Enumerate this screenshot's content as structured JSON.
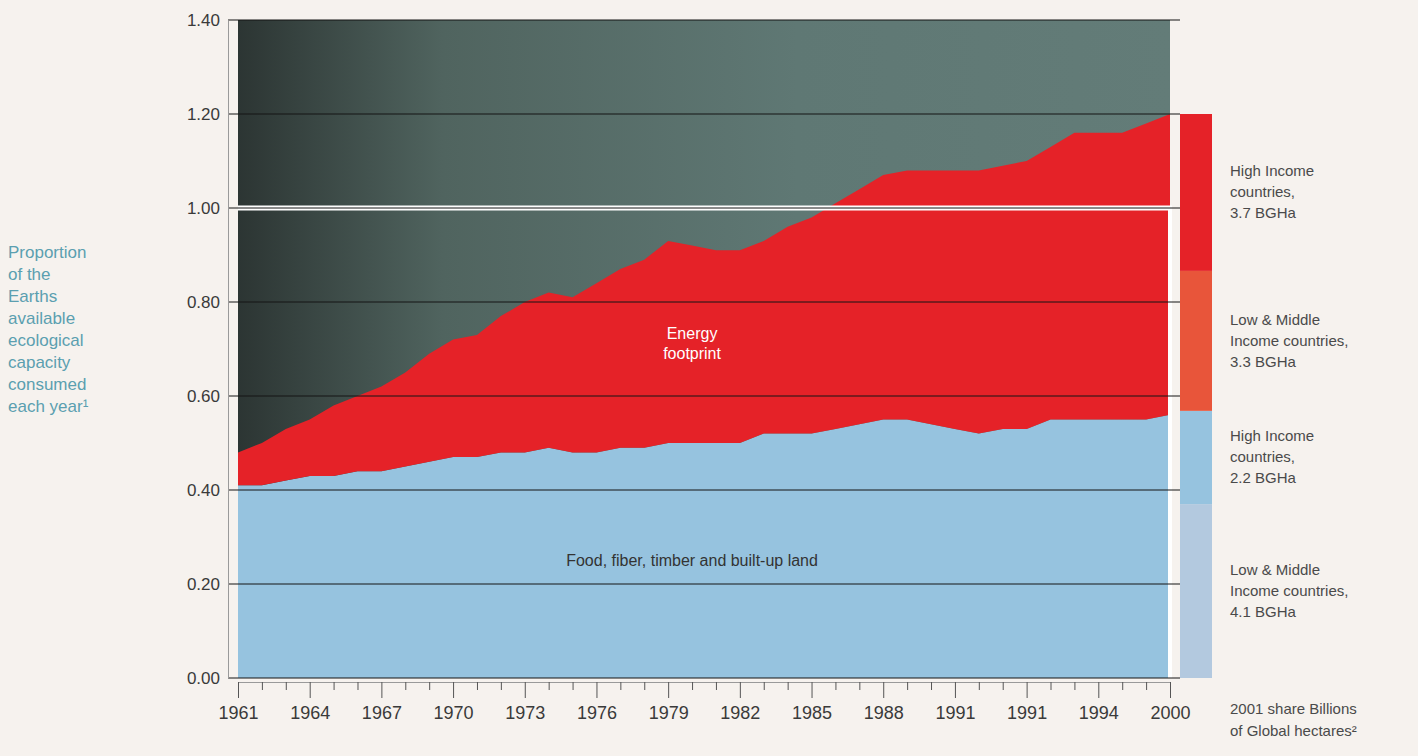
{
  "chart_data": [
    {
      "type": "area",
      "stacked": true,
      "grid": true,
      "y_label": "Proportion of the Earths available ecological capacity consumed each year¹",
      "categories": [
        "1961",
        null,
        null,
        "1964",
        null,
        null,
        "1967",
        null,
        null,
        "1970",
        null,
        null,
        "1973",
        null,
        null,
        "1976",
        null,
        null,
        "1979",
        null,
        null,
        "1982",
        null,
        null,
        "1985",
        null,
        null,
        "1988",
        null,
        null,
        "1991",
        null,
        null,
        "1991",
        null,
        null,
        "1994",
        null,
        null,
        "2000"
      ],
      "ylim": [
        0,
        1.4
      ],
      "yticks": [
        {
          "value": 0,
          "label": "0.00"
        },
        {
          "value": 0.2,
          "label": "0.20"
        },
        {
          "value": 0.4,
          "label": "0.40"
        },
        {
          "value": 0.6,
          "label": "0.60"
        },
        {
          "value": 0.8,
          "label": "0.80"
        },
        {
          "value": 1,
          "label": "1.00"
        },
        {
          "value": 1.2,
          "label": "1.20"
        },
        {
          "value": 1.4,
          "label": "1.40"
        }
      ],
      "capacity_line": 1,
      "series": [
        {
          "name": "Food, fiber, timber and built-up land",
          "color": "#96c3df",
          "values": [
            0.41,
            0.41,
            0.42,
            0.43,
            0.43,
            0.44,
            0.44,
            0.45,
            0.46,
            0.47,
            0.47,
            0.48,
            0.48,
            0.49,
            0.48,
            0.48,
            0.49,
            0.49,
            0.5,
            0.5,
            0.5,
            0.5,
            0.52,
            0.52,
            0.52,
            0.53,
            0.54,
            0.55,
            0.55,
            0.54,
            0.53,
            0.52,
            0.53,
            0.53,
            0.55,
            0.55,
            0.55,
            0.55,
            0.55,
            0.56
          ]
        },
        {
          "name": "Energy footprint",
          "color": "#e52228",
          "values": [
            0.07,
            0.09,
            0.11,
            0.12,
            0.15,
            0.16,
            0.18,
            0.2,
            0.23,
            0.25,
            0.26,
            0.29,
            0.32,
            0.33,
            0.33,
            0.36,
            0.38,
            0.4,
            0.43,
            0.42,
            0.41,
            0.41,
            0.41,
            0.44,
            0.46,
            0.48,
            0.5,
            0.52,
            0.53,
            0.54,
            0.55,
            0.56,
            0.56,
            0.57,
            0.58,
            0.61,
            0.61,
            0.61,
            0.63,
            0.64
          ]
        }
      ]
    },
    {
      "type": "bar",
      "stacked": true,
      "data_labels": true,
      "tick_labels": false,
      "title": "2001 share Billions of Global hectares²",
      "categories": [
        null
      ],
      "series": [
        {
          "name": "Low & Middle Income countries,",
          "color": "#b3c9df",
          "values": [
            4.1
          ],
          "value_labels": [
            "4.1 BGHa"
          ]
        },
        {
          "name": "High Income countries,",
          "color": "#96c3df",
          "values": [
            2.2
          ],
          "value_labels": [
            "2.2 BGHa"
          ]
        },
        {
          "name": "Low & Middle Income countries,",
          "color": "#e8553a",
          "values": [
            3.3
          ],
          "value_labels": [
            "3.3 BGHa"
          ]
        },
        {
          "name": "High Income countries,",
          "color": "#e52228",
          "values": [
            3.7
          ],
          "value_labels": [
            "3.7 BGHa"
          ]
        }
      ]
    }
  ]
}
